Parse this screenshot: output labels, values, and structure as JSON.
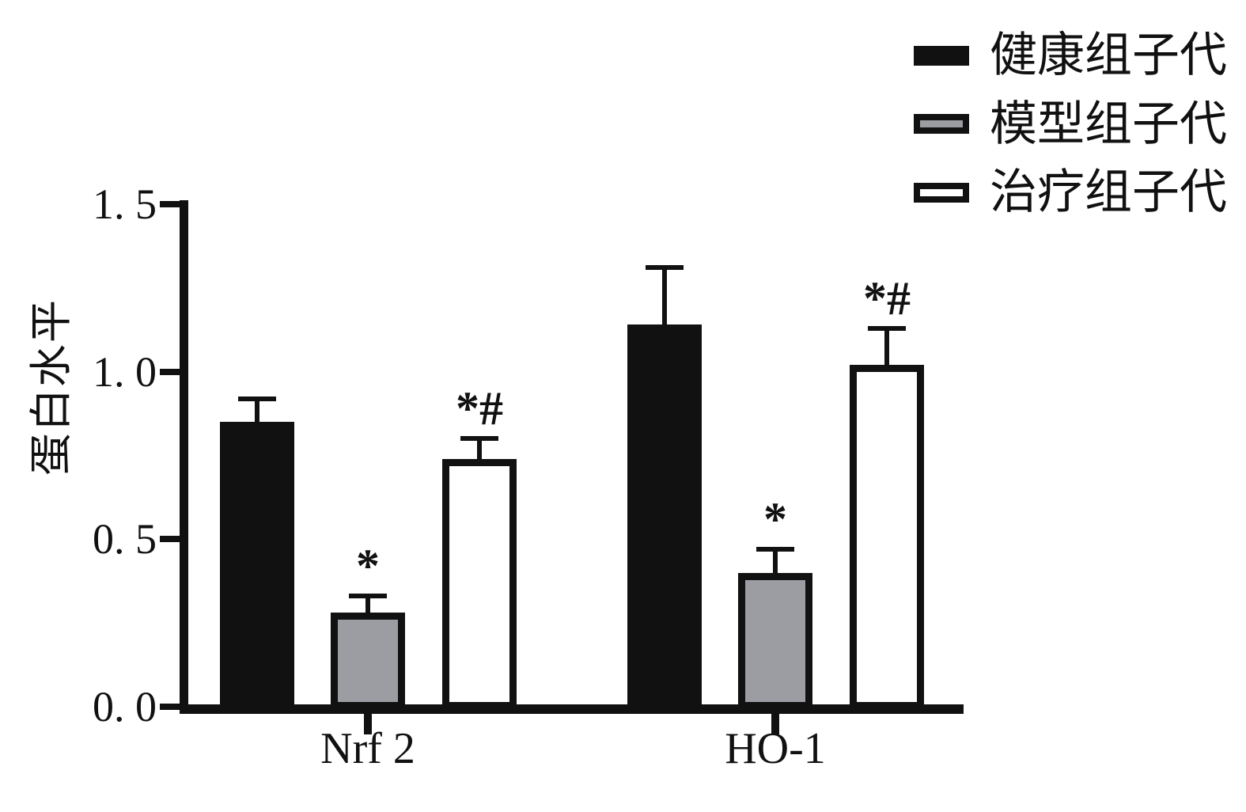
{
  "figure": {
    "ylabel": "蛋白水平"
  },
  "axes": {
    "y_tick_labels": [
      "0. 0",
      "0. 5",
      "1. 0",
      "1. 5"
    ],
    "x_category_labels": [
      "Nrf 2",
      "HO-1"
    ]
  },
  "legend": {
    "items": [
      {
        "label": "健康组子代",
        "style": "black"
      },
      {
        "label": "模型组子代",
        "style": "gray"
      },
      {
        "label": "治疗组子代",
        "style": "white"
      }
    ]
  },
  "colors": {
    "black": "#111111",
    "gray": "#9b9da2",
    "white": "#ffffff"
  },
  "chart_data": {
    "type": "bar",
    "title": "",
    "xlabel": "",
    "ylabel": "蛋白水平",
    "categories": [
      "Nrf 2",
      "HO-1"
    ],
    "ylim": [
      0,
      1.5
    ],
    "yticks": [
      0,
      0.5,
      1.0,
      1.5
    ],
    "grid": false,
    "legend_position": "top-right",
    "error_bars": "upper SD whiskers",
    "series": [
      {
        "name": "健康组子代",
        "style": "black",
        "values": [
          0.85,
          1.14
        ],
        "errors": [
          0.07,
          0.17
        ],
        "annotations": [
          "",
          ""
        ]
      },
      {
        "name": "模型组子代",
        "style": "gray",
        "values": [
          0.28,
          0.4
        ],
        "errors": [
          0.05,
          0.07
        ],
        "annotations": [
          "*",
          "*"
        ]
      },
      {
        "name": "治疗组子代",
        "style": "white",
        "values": [
          0.74,
          1.02
        ],
        "errors": [
          0.06,
          0.11
        ],
        "annotations": [
          "*#",
          "*#"
        ]
      }
    ]
  }
}
